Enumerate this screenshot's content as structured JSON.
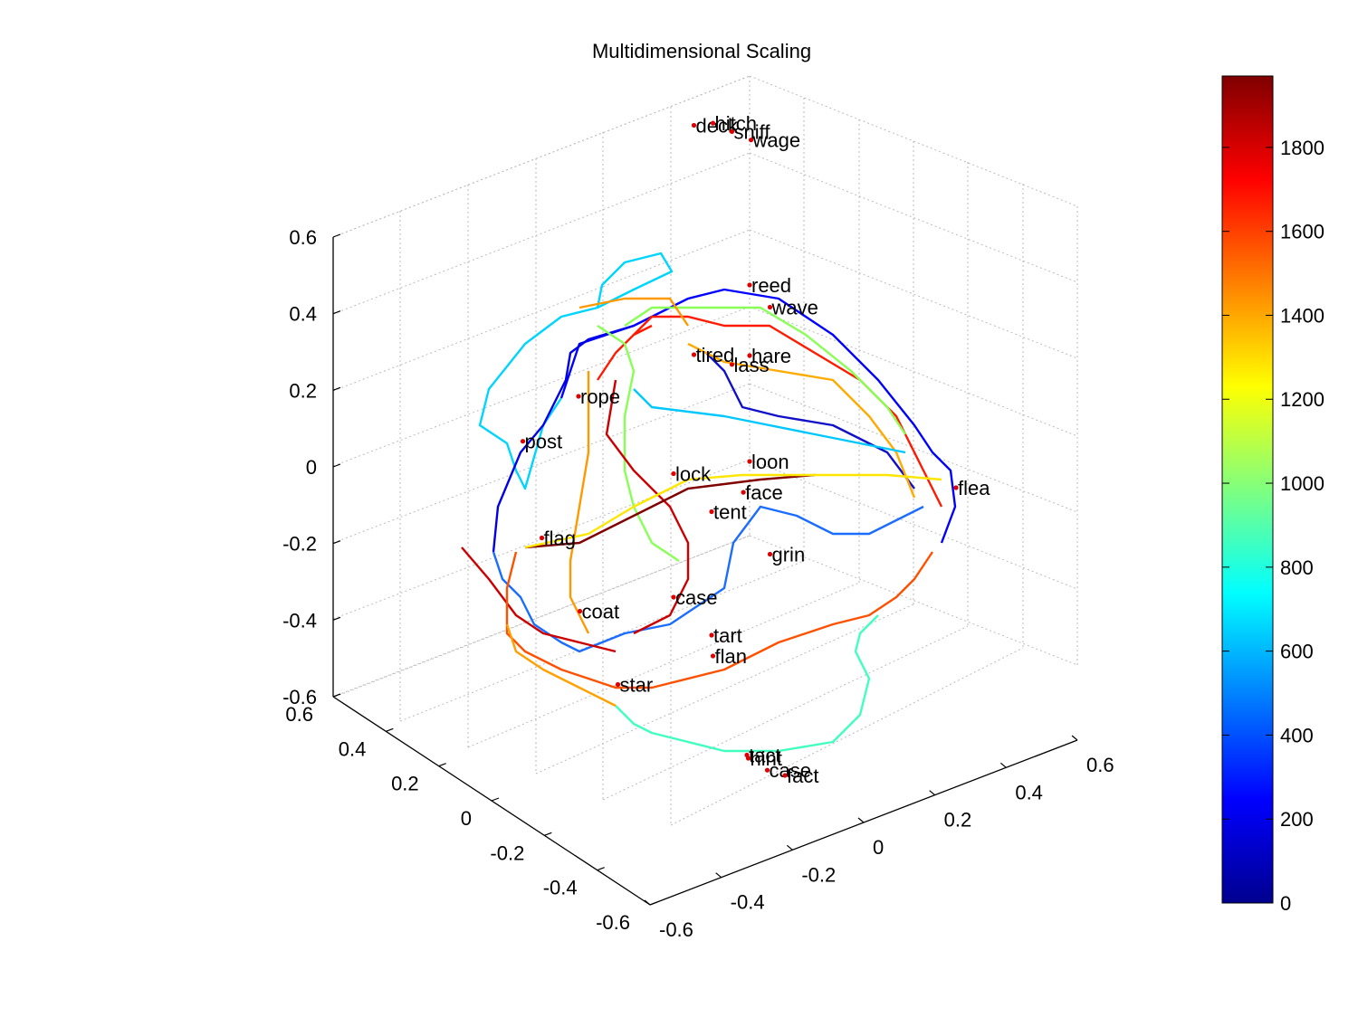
{
  "chart_data": {
    "type": "scatter",
    "title": "Multidimensional Scaling",
    "xlim": [
      -0.6,
      0.6
    ],
    "ylim": [
      -0.6,
      0.6
    ],
    "zlim": [
      -0.6,
      0.6
    ],
    "x_ticks": [
      "-0.6",
      "-0.4",
      "-0.2",
      "0",
      "0.2",
      "0.4",
      "0.6"
    ],
    "y_ticks": [
      "0.6",
      "0.4",
      "0.2",
      "0",
      "-0.2",
      "-0.4",
      "-0.6"
    ],
    "z_ticks": [
      "0.6",
      "0.4",
      "0.2",
      "0",
      "-0.2",
      "-0.4",
      "-0.6"
    ],
    "grid": true,
    "colorbar": {
      "colormap": "jet",
      "range": [
        0,
        1970
      ],
      "ticks": [
        "0",
        "200",
        "400",
        "600",
        "800",
        "1000",
        "1200",
        "1400",
        "1600",
        "1800"
      ]
    },
    "word_points": [
      {
        "label": "reed",
        "x": 0.0,
        "y": 0.0,
        "z": 0.5
      },
      {
        "label": "wave",
        "x": 0.1,
        "y": 0.05,
        "z": 0.45
      },
      {
        "label": "hare",
        "x": 0.0,
        "y": 0.0,
        "z": 0.3
      },
      {
        "label": "tired",
        "x": -0.1,
        "y": 0.05,
        "z": 0.3
      },
      {
        "label": "lass",
        "x": 0.0,
        "y": 0.05,
        "z": 0.28
      },
      {
        "label": "rope",
        "x": -0.45,
        "y": 0.0,
        "z": 0.15
      },
      {
        "label": "post",
        "x": -0.55,
        "y": 0.05,
        "z": 0.02
      },
      {
        "label": "loon",
        "x": 0.0,
        "y": 0.0,
        "z": 0.0
      },
      {
        "label": "lock",
        "x": -0.2,
        "y": 0.0,
        "z": -0.05
      },
      {
        "label": "face",
        "x": 0.03,
        "y": 0.05,
        "z": -0.08
      },
      {
        "label": "flea",
        "x": 0.45,
        "y": -0.1,
        "z": -0.05
      },
      {
        "label": "tent",
        "x": -0.1,
        "y": 0.0,
        "z": -0.15
      },
      {
        "label": "grin",
        "x": 0.1,
        "y": 0.05,
        "z": -0.25
      },
      {
        "label": "flag",
        "x": -0.5,
        "y": 0.05,
        "z": -0.25
      },
      {
        "label": "case",
        "x": -0.2,
        "y": 0.0,
        "z": -0.4
      },
      {
        "label": "coat",
        "x": -0.4,
        "y": 0.05,
        "z": -0.45
      },
      {
        "label": "tart",
        "x": -0.1,
        "y": 0.0,
        "z": -0.5
      },
      {
        "label": "flan",
        "x": -0.05,
        "y": 0.05,
        "z": -0.55
      },
      {
        "label": "star",
        "x": -0.3,
        "y": 0.05,
        "z": -0.65
      },
      {
        "label": "tact",
        "x": -0.1,
        "y": -0.1,
        "z": -0.85
      },
      {
        "label": "hint",
        "x": -0.05,
        "y": -0.05,
        "z": -0.85
      },
      {
        "label": "case",
        "x": 0.0,
        "y": -0.05,
        "z": -0.88
      },
      {
        "label": "fact",
        "x": 0.0,
        "y": -0.1,
        "z": -0.9
      },
      {
        "label": "deck",
        "x": -0.1,
        "y": 0.05,
        "z": 0.95
      },
      {
        "label": "hitch",
        "x": -0.05,
        "y": 0.05,
        "z": 0.96
      },
      {
        "label": "sniff",
        "x": 0.0,
        "y": 0.05,
        "z": 0.94
      },
      {
        "label": "wage",
        "x": 0.05,
        "y": 0.05,
        "z": 0.92
      }
    ]
  }
}
